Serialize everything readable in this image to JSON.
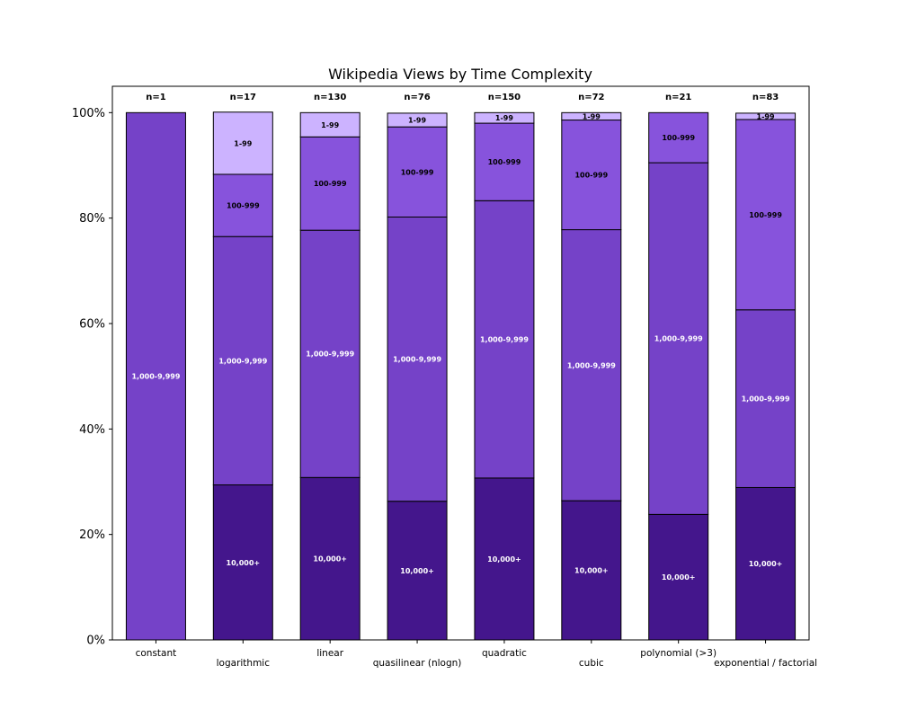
{
  "chart_data": {
    "type": "bar",
    "stacked": true,
    "title": "Wikipedia Views by Time Complexity",
    "xlabel": "",
    "ylabel": "",
    "ylim": [
      0,
      105
    ],
    "yticks": [
      0,
      20,
      40,
      60,
      80,
      100
    ],
    "ytick_labels": [
      "0%",
      "20%",
      "40%",
      "60%",
      "80%",
      "100%"
    ],
    "categories": [
      "constant",
      "logarithmic",
      "linear",
      "quasilinear (nlogn)",
      "quadratic",
      "cubic",
      "polynomial (>3)",
      "exponential / factorial"
    ],
    "n_labels": [
      "n=1",
      "n=17",
      "n=130",
      "n=76",
      "n=150",
      "n=72",
      "n=21",
      "n=83"
    ],
    "series": [
      {
        "name": "10,000+",
        "color": "#44168c",
        "label_color": "#ffffff",
        "values": [
          0,
          29.4,
          30.8,
          26.3,
          30.7,
          26.4,
          23.8,
          28.9
        ]
      },
      {
        "name": "1,000-9,999",
        "color": "#7542c8",
        "label_color": "#ffffff",
        "values": [
          100,
          47.1,
          46.9,
          53.9,
          52.6,
          51.4,
          66.7,
          33.7
        ]
      },
      {
        "name": "100-999",
        "color": "#8753dc",
        "label_color": "#000000",
        "values": [
          0,
          11.8,
          17.7,
          17.1,
          14.7,
          20.8,
          9.5,
          36.1
        ]
      },
      {
        "name": "1-99",
        "color": "#ccb3ff",
        "label_color": "#000000",
        "values": [
          0,
          11.8,
          4.6,
          2.6,
          2.0,
          1.4,
          0,
          1.2
        ]
      }
    ]
  }
}
